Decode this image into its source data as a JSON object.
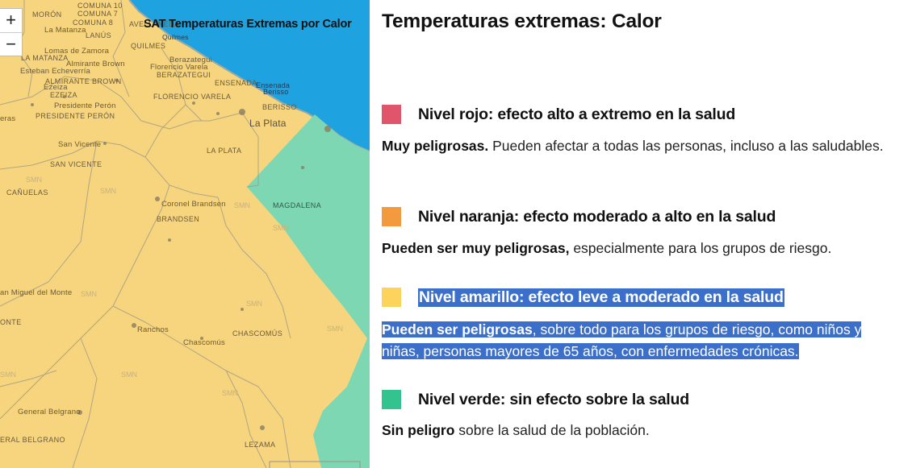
{
  "map": {
    "title": "SAT Temperaturas Extremas por Calor",
    "zoom_in": "+",
    "zoom_out": "−",
    "watermark": "SMN",
    "colors": {
      "water": "#1ea3e0",
      "yellow": "#f6d57e",
      "green": "#7dd7b3"
    },
    "places": {
      "comuna10": "COMUNA 10",
      "moron": "MORÓN",
      "comuna7": "COMUNA 7",
      "avellaneda": "AVELLANEDA",
      "comuna8": "COMUNA 8",
      "lamatanza_lower": "La Matanza",
      "lanus": "LANÚS",
      "quilmes_city": "Quilmes",
      "quilmes": "QUILMES",
      "lomas": "Lomas de Zamora",
      "lamatanza": "LA MATANZA",
      "berazategui_city": "Berazategui",
      "almirante_city": "Almirante Brown",
      "esteban": "Esteban Echeverría",
      "florencio_city": "Florencio Varela",
      "berazategui": "BERAZATEGUI",
      "almirante": "ALMIRANTE BROWN",
      "ensenada": "ENSENADA",
      "ensenada_city": "Ensenada",
      "berisso_city": "Berisso",
      "ezeiza_city": "Ezeiza",
      "ezeiza": "EZEIZA",
      "florencio": "FLORENCIO VARELA",
      "presidente_city": "Presidente Perón",
      "berisso": "BERISSO",
      "presidente": "PRESIDENTE PERÓN",
      "laplata_city": "La Plata",
      "sanvicente_city": "San Vicente",
      "laplata": "LA PLATA",
      "sanvicente": "SAN VICENTE",
      "canuelas": "CAÑUELAS",
      "magdalena": "MAGDALENA",
      "coronel": "Coronel Brandsen",
      "brandsen": "BRANDSEN",
      "sanmiguel": "an Miguel del Monte",
      "monte": "ONTE",
      "ranchos": "Ranchos",
      "chascomus": "CHASCOMÚS",
      "chascomus_city": "Chascomús",
      "generalbelgrano_city": "General Belgrano",
      "generalbelgrano": "ERAL BELGRANO",
      "lezama": "LEZAMA",
      "quilmes_small": "Quilmes",
      "ezeiza_small": "Ezeiza",
      "eras": "eras"
    }
  },
  "panel": {
    "title": "Temperaturas extremas: Calor",
    "levels": [
      {
        "color": "#e05569",
        "title": "Nivel rojo: efecto alto a extremo en la salud",
        "desc_bold": "Muy peligrosas.",
        "desc_rest": " Pueden afectar a todas las personas, incluso a las saludables."
      },
      {
        "color": "#f39a3e",
        "title": "Nivel naranja: efecto moderado a alto en la salud",
        "desc_bold": "Pueden ser muy peligrosas,",
        "desc_rest": " especialmente para los grupos de riesgo."
      },
      {
        "color": "#fdd35b",
        "title": "Nivel amarillo: efecto leve a moderado en la salud",
        "desc_bold": "Pueden ser peligrosas",
        "desc_rest": ", sobre todo para los grupos de riesgo, como niños y niñas, personas mayores de 65 años, con enfermedades crónicas."
      },
      {
        "color": "#33c38e",
        "title": "Nivel verde: sin efecto sobre la salud",
        "desc_bold": "Sin peligro",
        "desc_rest": " sobre la salud de la población."
      }
    ]
  }
}
